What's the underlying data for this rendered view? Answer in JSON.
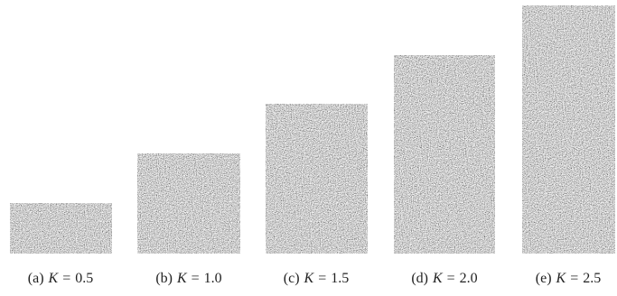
{
  "panels": [
    {
      "label": "(a)",
      "symbol": "K",
      "relation": "=",
      "value": "0.5"
    },
    {
      "label": "(b)",
      "symbol": "K",
      "relation": "=",
      "value": "1.0"
    },
    {
      "label": "(c)",
      "symbol": "K",
      "relation": "=",
      "value": "1.5"
    },
    {
      "label": "(d)",
      "symbol": "K",
      "relation": "=",
      "value": "2.0"
    },
    {
      "label": "(e)",
      "symbol": "K",
      "relation": "=",
      "value": "2.5"
    }
  ]
}
